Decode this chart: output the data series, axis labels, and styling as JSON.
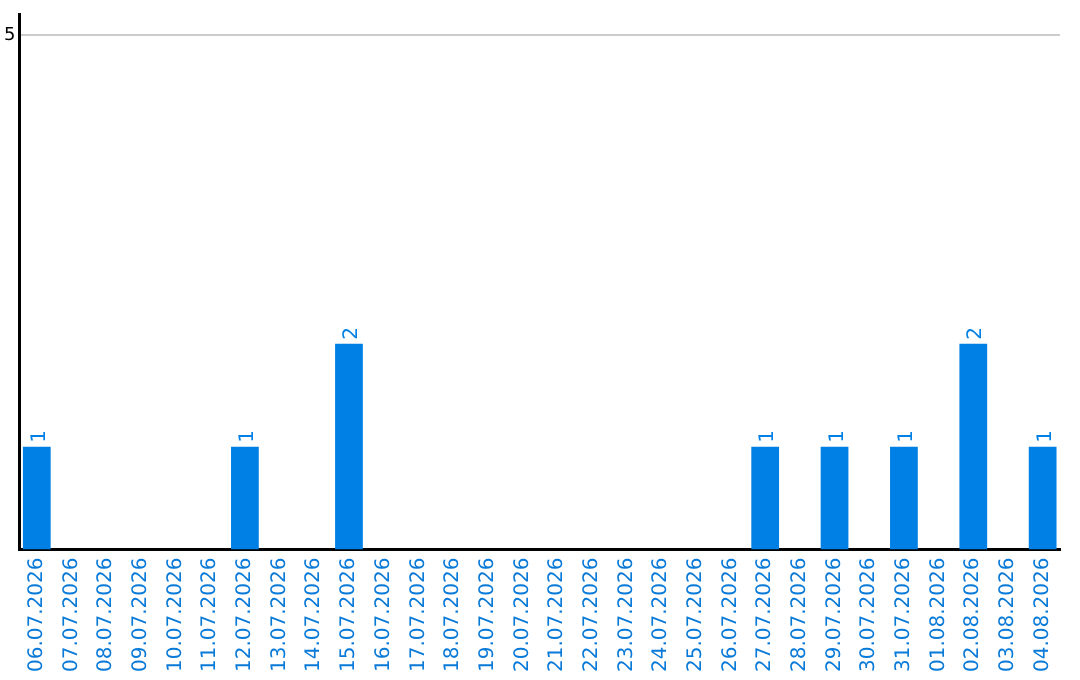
{
  "chart_data": {
    "type": "bar",
    "categories": [
      "06.07.2026",
      "07.07.2026",
      "08.07.2026",
      "09.07.2026",
      "10.07.2026",
      "11.07.2026",
      "12.07.2026",
      "13.07.2026",
      "14.07.2026",
      "15.07.2026",
      "16.07.2026",
      "17.07.2026",
      "18.07.2026",
      "19.07.2026",
      "20.07.2026",
      "21.07.2026",
      "22.07.2026",
      "23.07.2026",
      "24.07.2026",
      "25.07.2026",
      "26.07.2026",
      "27.07.2026",
      "28.07.2026",
      "29.07.2026",
      "30.07.2026",
      "31.07.2026",
      "01.08.2026",
      "02.08.2026",
      "03.08.2026",
      "04.08.2026"
    ],
    "values": [
      1,
      0,
      0,
      0,
      0,
      0,
      1,
      0,
      0,
      2,
      0,
      0,
      0,
      0,
      0,
      0,
      0,
      0,
      0,
      0,
      0,
      1,
      0,
      1,
      0,
      1,
      0,
      2,
      0,
      1
    ],
    "value_labels": [
      "1",
      null,
      null,
      null,
      null,
      null,
      "1",
      null,
      null,
      "2",
      null,
      null,
      null,
      null,
      null,
      null,
      null,
      null,
      null,
      null,
      null,
      "1",
      null,
      "1",
      null,
      "1",
      null,
      "2",
      null,
      "1"
    ],
    "color": "#0080e4",
    "ylim": [
      0,
      5.2
    ],
    "yticks": [
      5
    ],
    "grid": "y",
    "legend": false
  }
}
